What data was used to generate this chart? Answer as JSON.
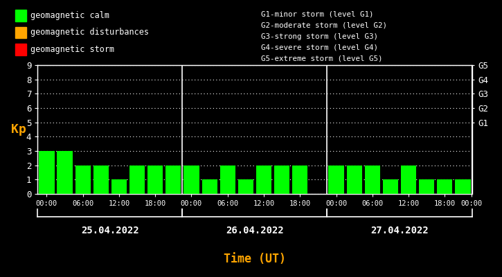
{
  "background_color": "#000000",
  "plot_bg_color": "#000000",
  "text_color": "#ffffff",
  "grid_color": "#ffffff",
  "bar_color_calm": "#00ff00",
  "bar_color_disturb": "#ffa500",
  "bar_color_storm": "#ff0000",
  "kp_label_color": "#ffa500",
  "time_label_color": "#ffa500",
  "ylabel": "Kp",
  "xlabel": "Time (UT)",
  "ylim": [
    0,
    9
  ],
  "days": [
    "25.04.2022",
    "26.04.2022",
    "27.04.2022"
  ],
  "kp_values": [
    3,
    3,
    2,
    2,
    1,
    2,
    2,
    2,
    2,
    1,
    2,
    1,
    2,
    2,
    2,
    0,
    2,
    2,
    2,
    1,
    2,
    1,
    1,
    1
  ],
  "legend_calm": "geomagnetic calm",
  "legend_disturb": "geomagnetic disturbances",
  "legend_storm": "geomagnetic storm",
  "right_labels": [
    "G1-minor storm (level G1)",
    "G2-moderate storm (level G2)",
    "G3-strong storm (level G3)",
    "G4-severe storm (level G4)",
    "G5-extreme storm (level G5)"
  ],
  "right_yticks": [
    5,
    6,
    7,
    8,
    9
  ],
  "right_yticklabels": [
    "G1",
    "G2",
    "G3",
    "G4",
    "G5"
  ],
  "vline_positions": [
    8,
    16
  ],
  "tick_labels": [
    "00:00",
    "06:00",
    "12:00",
    "18:00",
    "00:00",
    "06:00",
    "12:00",
    "18:00",
    "00:00",
    "06:00",
    "12:00",
    "18:00",
    "00:00"
  ]
}
